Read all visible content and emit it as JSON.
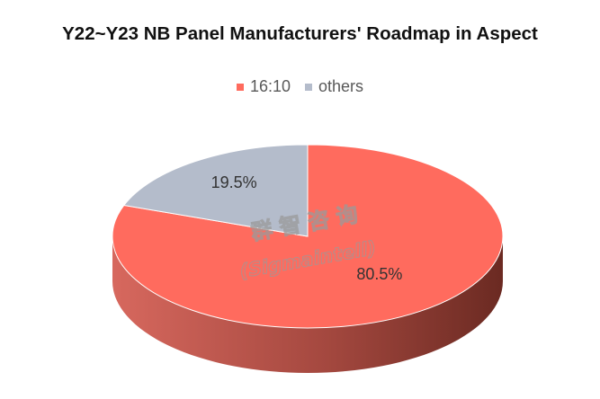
{
  "chart_data": {
    "type": "pie",
    "title": "Y22~Y23 NB Panel Manufacturers' Roadmap in Aspect",
    "series": [
      {
        "name": "16:10",
        "value": 80.5,
        "label": "80.5%",
        "color": "#FF6B5E",
        "side_dark": "#6B2A22",
        "side_light": "#D7685E"
      },
      {
        "name": "others",
        "value": 19.5,
        "label": "19.5%",
        "color": "#B4BCCB",
        "side_dark": "#7E8593",
        "side_light": "#A8AFBC"
      }
    ],
    "start_angle_deg": 90,
    "direction": "clockwise",
    "style": "3d",
    "legend_position": "top"
  },
  "watermark": {
    "line1": "群智咨询",
    "line2": "(Sigmaintell)"
  }
}
